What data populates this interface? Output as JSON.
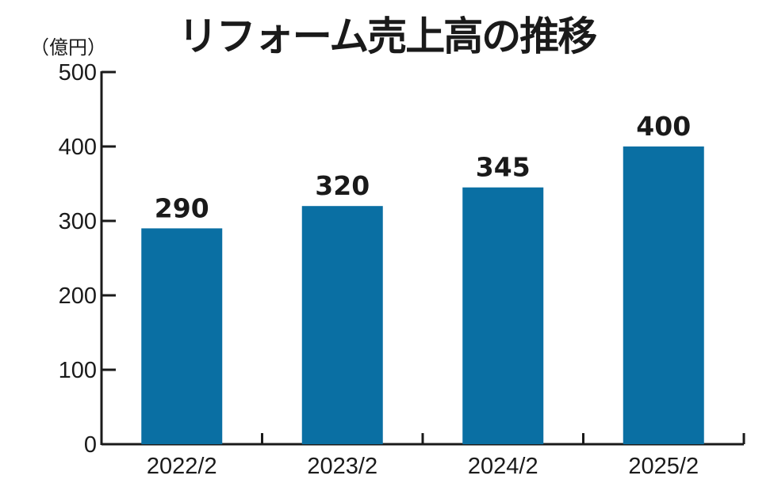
{
  "chart_data": {
    "type": "bar",
    "title": "リフォーム売上高の推移",
    "unit": "（億円）",
    "categories": [
      "2022/2",
      "2023/2",
      "2024/2",
      "2025/2"
    ],
    "values": [
      290,
      320,
      345,
      400
    ],
    "value_labels": [
      "290",
      "320",
      "345",
      "400"
    ],
    "ylim": [
      0,
      500
    ],
    "yticks": [
      0,
      100,
      200,
      300,
      400,
      500
    ],
    "grid": false,
    "legend": "none",
    "bar_color": "#0a6fa3",
    "axis_color": "#1a1a1a"
  }
}
